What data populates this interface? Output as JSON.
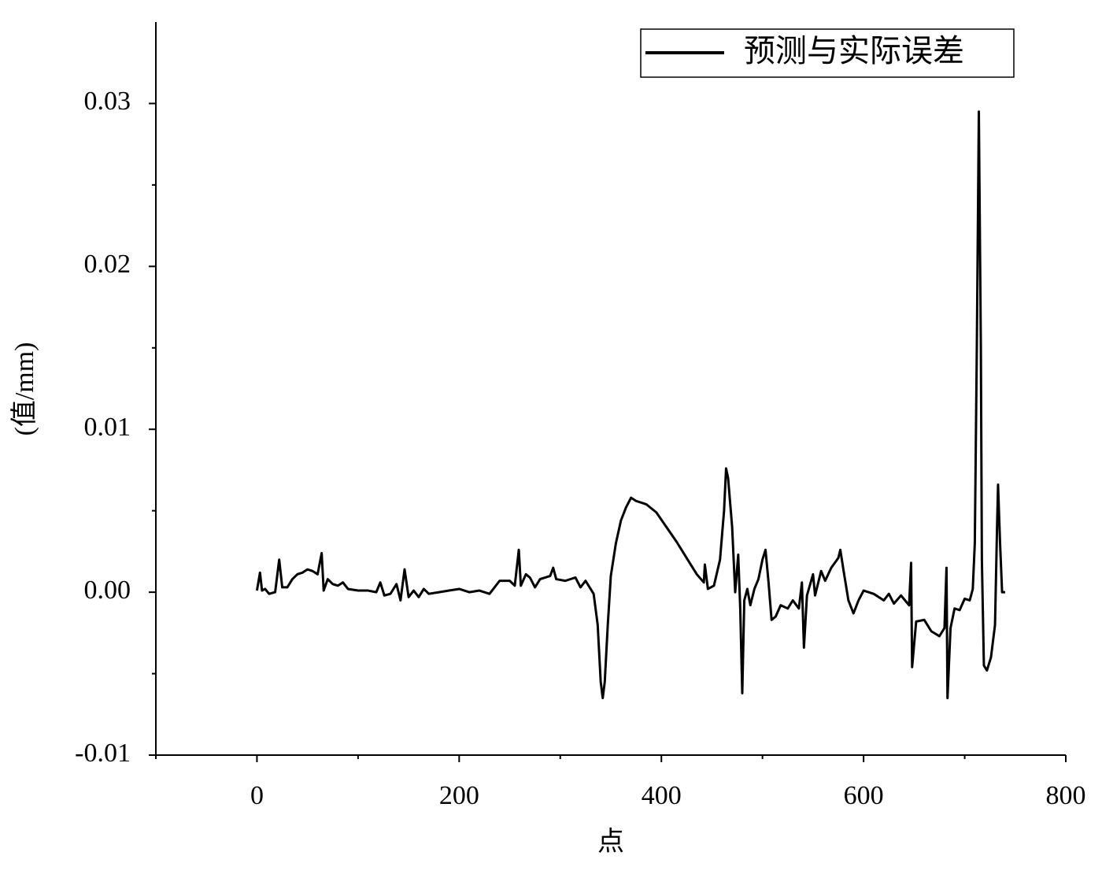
{
  "chart_data": {
    "type": "line",
    "xlabel": "点",
    "ylabel": "(值/mm)",
    "x": [
      0,
      3,
      5,
      8,
      12,
      18,
      22,
      25,
      30,
      35,
      40,
      45,
      50,
      55,
      60,
      64,
      66,
      70,
      75,
      80,
      85,
      90,
      100,
      110,
      118,
      122,
      126,
      132,
      138,
      142,
      146,
      150,
      155,
      160,
      165,
      170,
      180,
      190,
      200,
      210,
      220,
      230,
      240,
      250,
      255,
      259,
      261,
      266,
      270,
      275,
      280,
      290,
      293,
      296,
      305,
      315,
      320,
      325,
      330,
      333,
      337,
      340,
      342,
      344,
      347,
      350,
      355,
      360,
      365,
      370,
      375,
      385,
      395,
      405,
      415,
      425,
      435,
      442,
      443,
      446,
      452,
      458,
      462,
      464,
      466,
      470,
      473,
      476,
      478,
      480,
      482,
      485,
      488,
      492,
      496,
      500,
      503,
      506,
      509,
      513,
      518,
      525,
      530,
      536,
      539,
      541,
      544,
      550,
      552,
      558,
      562,
      568,
      575,
      577,
      580,
      585,
      590,
      595,
      600,
      610,
      620,
      625,
      630,
      637,
      645,
      647,
      648,
      652,
      660,
      667,
      675,
      680,
      682,
      683,
      686,
      690,
      695,
      700,
      705,
      708,
      710,
      712,
      714,
      716,
      717,
      719,
      722,
      726,
      730,
      732,
      733,
      735,
      737,
      740
    ],
    "series": [
      {
        "name": "预测与实际误差",
        "color": "#000000",
        "values": [
          0.0001,
          0.0012,
          0.0001,
          0.0002,
          -0.0001,
          0.0,
          0.002,
          0.0003,
          0.0003,
          0.0008,
          0.0011,
          0.0012,
          0.0014,
          0.0013,
          0.0011,
          0.0024,
          0.0001,
          0.0008,
          0.0005,
          0.0004,
          0.0006,
          0.0002,
          0.0001,
          0.0001,
          0.0,
          0.0006,
          -0.0002,
          -0.0001,
          0.0005,
          -0.0005,
          0.0014,
          -0.0003,
          0.0001,
          -0.0003,
          0.0002,
          -0.0001,
          0.0,
          0.0001,
          0.0002,
          0.0,
          0.0001,
          -0.0001,
          0.0007,
          0.0007,
          0.0004,
          0.0026,
          0.0004,
          0.0011,
          0.0009,
          0.0003,
          0.0008,
          0.001,
          0.0015,
          0.0008,
          0.0007,
          0.0009,
          0.0003,
          0.0007,
          0.0002,
          -0.0001,
          -0.002,
          -0.0055,
          -0.0065,
          -0.0055,
          -0.002,
          0.001,
          0.003,
          0.0044,
          0.0052,
          0.0058,
          0.0056,
          0.0054,
          0.0049,
          0.004,
          0.0031,
          0.0021,
          0.0011,
          0.0006,
          0.0017,
          0.0002,
          0.0004,
          0.002,
          0.005,
          0.0076,
          0.007,
          0.004,
          0.0,
          0.0023,
          -0.001,
          -0.0062,
          -0.0005,
          0.0002,
          -0.0008,
          0.0002,
          0.0008,
          0.002,
          0.0026,
          0.0006,
          -0.0017,
          -0.0015,
          -0.0008,
          -0.001,
          -0.0005,
          -0.001,
          0.0006,
          -0.0034,
          -0.0002,
          0.0011,
          -0.0002,
          0.0013,
          0.0007,
          0.0015,
          0.0021,
          0.0026,
          0.0014,
          -0.0005,
          -0.0013,
          -0.0005,
          0.0001,
          -0.0001,
          -0.0005,
          -0.0001,
          -0.0007,
          -0.0002,
          -0.0008,
          0.0018,
          -0.0046,
          -0.0018,
          -0.0017,
          -0.0024,
          -0.0027,
          -0.0022,
          0.0015,
          -0.0065,
          -0.0022,
          -0.001,
          -0.0011,
          -0.0004,
          -0.0005,
          0.0002,
          0.003,
          0.015,
          0.0295,
          0.015,
          0.002,
          -0.0045,
          -0.0048,
          -0.004,
          -0.002,
          0.004,
          0.0066,
          0.003,
          0.0,
          0.0
        ]
      }
    ],
    "xlim": [
      -100,
      800
    ],
    "xticks": [
      0,
      200,
      400,
      600,
      800
    ],
    "xminorticks": [
      -100,
      100,
      300,
      500,
      700
    ],
    "ylim": [
      -0.01,
      0.035
    ],
    "yticks": [
      -0.01,
      {
        "value": 0,
        "label": "0.00"
      },
      0.01,
      0.02,
      0.03
    ],
    "yminorticks": [
      -0.005,
      0.005,
      0.015,
      0.025
    ],
    "legend": "upper right"
  }
}
